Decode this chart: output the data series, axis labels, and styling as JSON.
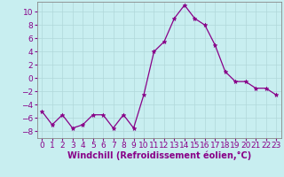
{
  "x": [
    0,
    1,
    2,
    3,
    4,
    5,
    6,
    7,
    8,
    9,
    10,
    11,
    12,
    13,
    14,
    15,
    16,
    17,
    18,
    19,
    20,
    21,
    22,
    23
  ],
  "y": [
    -5,
    -7,
    -5.5,
    -7.5,
    -7,
    -5.5,
    -5.5,
    -7.5,
    -5.5,
    -7.5,
    -2.5,
    4,
    5.5,
    9,
    11,
    9,
    8,
    5,
    1,
    -0.5,
    -0.5,
    -1.5,
    -1.5,
    -2.5
  ],
  "line_color": "#880088",
  "marker": "*",
  "marker_size": 3.5,
  "bg_color": "#c8eef0",
  "grid_color": "#b0d8da",
  "xlabel": "Windchill (Refroidissement éolien,°C)",
  "xlabel_fontsize": 7,
  "tick_fontsize": 6.5,
  "xlim": [
    -0.5,
    23.5
  ],
  "ylim": [
    -9,
    11.5
  ],
  "yticks": [
    -8,
    -6,
    -4,
    -2,
    0,
    2,
    4,
    6,
    8,
    10
  ],
  "xticks": [
    0,
    1,
    2,
    3,
    4,
    5,
    6,
    7,
    8,
    9,
    10,
    11,
    12,
    13,
    14,
    15,
    16,
    17,
    18,
    19,
    20,
    21,
    22,
    23
  ]
}
